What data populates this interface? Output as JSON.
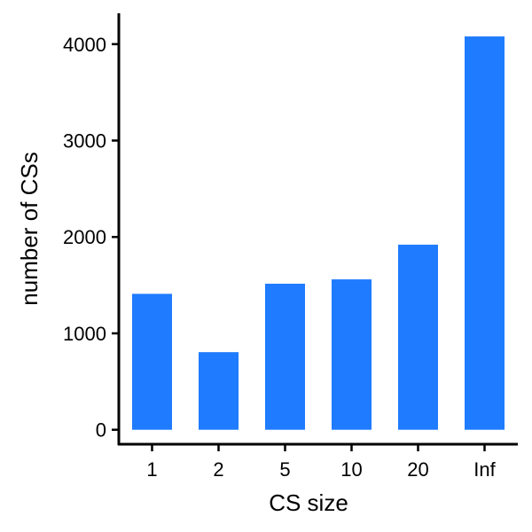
{
  "chart_data": {
    "type": "bar",
    "categories": [
      "1",
      "2",
      "5",
      "10",
      "20",
      "Inf"
    ],
    "values": [
      1410,
      805,
      1515,
      1560,
      1920,
      4080
    ],
    "xlabel": "CS size",
    "ylabel": "number of CSs",
    "ylim": [
      -150,
      4320
    ],
    "yticks": [
      0,
      1000,
      2000,
      3000,
      4000
    ],
    "ytick_labels": [
      "0",
      "1000",
      "2000",
      "3000",
      "4000"
    ],
    "grid": false,
    "legend": "none",
    "bar_color": "#1f7bff",
    "axis_color": "#000000"
  }
}
